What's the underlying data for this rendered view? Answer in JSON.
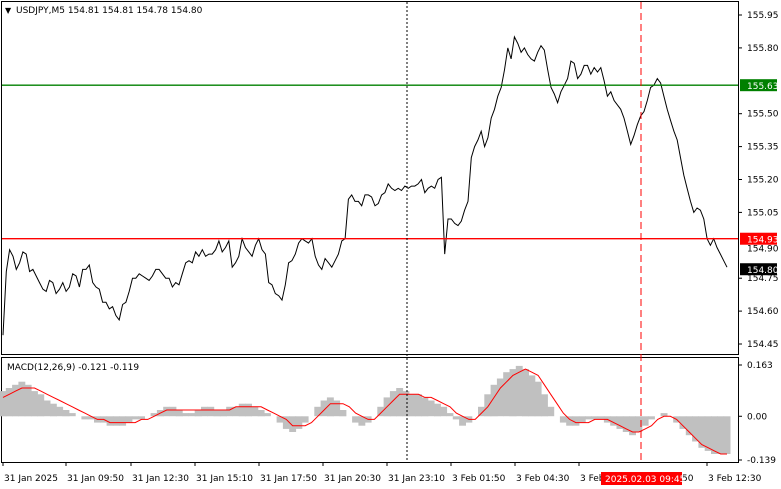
{
  "chart_data": [
    {
      "type": "line",
      "title": "USDJPY,M5  154.81 154.81 154.78 154.80",
      "symbol": "USDJPY,M5",
      "ohlc": [
        "154.81",
        "154.81",
        "154.78",
        "154.80"
      ],
      "y_ticks": [
        "155.95",
        "155.80",
        "155.50",
        "155.35",
        "155.20",
        "155.05",
        "154.75",
        "154.60",
        "154.45"
      ],
      "ylim": [
        154.4,
        156.0
      ],
      "x_ticks": [
        "31 Jan 2025",
        "31 Jan 09:50",
        "31 Jan 12:30",
        "31 Jan 15:10",
        "31 Jan 17:50",
        "31 Jan 20:30",
        "31 Jan 23:10",
        "3 Feb 01:50",
        "3 Feb 04:30",
        "3 Feb",
        "3 Feb 12:30"
      ],
      "x_tick_partial": "50",
      "levels": [
        {
          "price": 155.63,
          "label": "155.63",
          "color": "#008000"
        },
        {
          "price": 154.93,
          "label": "154.93",
          "color": "#ff0000"
        }
      ],
      "current_price": "154.80",
      "current_price_sub": "154.90",
      "cursor_time": "2025.02.03 09:45",
      "day_separator": "31 Jan 23:10",
      "series": [
        {
          "values": [
            154.49,
            154.78,
            154.88,
            154.85,
            154.79,
            154.82,
            154.87,
            154.86,
            154.78,
            154.79,
            154.76,
            154.73,
            154.7,
            154.69,
            154.74,
            154.73,
            154.68,
            154.7,
            154.73,
            154.69,
            154.71,
            154.77,
            154.76,
            154.71,
            154.79,
            154.79,
            154.81,
            154.73,
            154.71,
            154.7,
            154.64,
            154.64,
            154.61,
            154.62,
            154.58,
            154.56,
            154.63,
            154.64,
            154.69,
            154.75,
            154.75,
            154.77,
            154.76,
            154.75,
            154.74,
            154.76,
            154.79,
            154.79,
            154.77,
            154.75,
            154.75,
            154.71,
            154.73,
            154.72,
            154.77,
            154.82,
            154.83,
            154.82,
            154.87,
            154.85,
            154.88,
            154.85,
            154.86,
            154.86,
            154.88,
            154.92,
            154.87,
            154.89,
            154.92,
            154.8,
            154.82,
            154.85,
            154.93,
            154.89,
            154.87,
            154.85,
            154.9,
            154.93,
            154.88,
            154.86,
            154.73,
            154.72,
            154.68,
            154.67,
            154.65,
            154.72,
            154.82,
            154.83,
            154.86,
            154.91,
            154.93,
            154.92,
            154.91,
            154.93,
            154.85,
            154.81,
            154.79,
            154.84,
            154.82,
            154.8,
            154.83,
            154.86,
            154.92,
            154.93,
            155.11,
            155.13,
            155.1,
            155.1,
            155.08,
            155.13,
            155.13,
            155.12,
            155.08,
            155.09,
            155.13,
            155.14,
            155.18,
            155.16,
            155.15,
            155.16,
            155.15,
            155.17,
            155.16,
            155.17,
            155.17,
            155.18,
            155.2,
            155.14,
            155.16,
            155.17,
            155.16,
            155.2,
            155.21,
            154.86,
            155.02,
            155.02,
            155.0,
            154.99,
            155.01,
            155.06,
            155.1,
            155.3,
            155.35,
            155.38,
            155.42,
            155.35,
            155.39,
            155.48,
            155.52,
            155.58,
            155.62,
            155.7,
            155.8,
            155.75,
            155.85,
            155.82,
            155.78,
            155.8,
            155.77,
            155.75,
            155.74,
            155.78,
            155.81,
            155.79,
            155.7,
            155.62,
            155.59,
            155.55,
            155.6,
            155.63,
            155.66,
            155.74,
            155.73,
            155.66,
            155.68,
            155.72,
            155.72,
            155.68,
            155.71,
            155.69,
            155.71,
            155.65,
            155.58,
            155.6,
            155.56,
            155.54,
            155.52,
            155.48,
            155.42,
            155.36,
            155.4,
            155.45,
            155.49,
            155.51,
            155.56,
            155.62,
            155.63,
            155.66,
            155.64,
            155.58,
            155.52,
            155.47,
            155.42,
            155.38,
            155.3,
            155.22,
            155.16,
            155.1,
            155.05,
            155.07,
            155.06,
            155.02,
            154.93,
            154.9,
            154.93,
            154.89,
            154.86,
            154.83,
            154.8
          ]
        }
      ]
    },
    {
      "type": "area",
      "title": "MACD(12,26,9) -0.121 -0.119",
      "y_ticks": [
        "0.163",
        "0.00",
        "-0.139"
      ],
      "ylim": [
        -0.14,
        0.165
      ],
      "series": [
        {
          "name": "MACD",
          "values": [
            0.08,
            0.09,
            0.1,
            0.11,
            0.1,
            0.08,
            0.07,
            0.05,
            0.04,
            0.03,
            0.02,
            0.01,
            0.0,
            -0.01,
            -0.01,
            -0.02,
            -0.02,
            -0.03,
            -0.03,
            -0.03,
            -0.02,
            -0.01,
            -0.01,
            0.0,
            0.01,
            0.02,
            0.03,
            0.03,
            0.02,
            0.01,
            0.01,
            0.02,
            0.03,
            0.03,
            0.02,
            0.02,
            0.03,
            0.03,
            0.04,
            0.04,
            0.03,
            0.02,
            0.01,
            0.0,
            -0.02,
            -0.04,
            -0.05,
            -0.04,
            -0.02,
            0.0,
            0.03,
            0.05,
            0.06,
            0.05,
            0.02,
            0.0,
            -0.02,
            -0.03,
            -0.02,
            0.0,
            0.03,
            0.06,
            0.08,
            0.09,
            0.08,
            0.07,
            0.07,
            0.06,
            0.05,
            0.04,
            0.03,
            0.01,
            -0.01,
            -0.03,
            -0.02,
            0.0,
            0.03,
            0.07,
            0.1,
            0.12,
            0.14,
            0.15,
            0.16,
            0.15,
            0.13,
            0.11,
            0.07,
            0.03,
            0.0,
            -0.02,
            -0.03,
            -0.03,
            -0.02,
            -0.01,
            -0.01,
            -0.01,
            -0.02,
            -0.03,
            -0.04,
            -0.05,
            -0.06,
            -0.05,
            -0.03,
            -0.01,
            0.0,
            0.01,
            0.0,
            -0.02,
            -0.04,
            -0.06,
            -0.08,
            -0.1,
            -0.11,
            -0.12,
            -0.12,
            -0.12
          ]
        },
        {
          "name": "Signal",
          "values": [
            0.06,
            0.07,
            0.08,
            0.09,
            0.09,
            0.09,
            0.08,
            0.07,
            0.06,
            0.05,
            0.04,
            0.03,
            0.02,
            0.01,
            0.0,
            -0.01,
            -0.01,
            -0.02,
            -0.02,
            -0.02,
            -0.02,
            -0.02,
            -0.01,
            -0.01,
            0.0,
            0.01,
            0.02,
            0.02,
            0.02,
            0.02,
            0.02,
            0.02,
            0.02,
            0.02,
            0.02,
            0.02,
            0.02,
            0.03,
            0.03,
            0.03,
            0.03,
            0.03,
            0.02,
            0.01,
            0.0,
            -0.01,
            -0.03,
            -0.03,
            -0.03,
            -0.02,
            0.0,
            0.02,
            0.04,
            0.04,
            0.04,
            0.03,
            0.01,
            0.0,
            -0.01,
            -0.01,
            0.01,
            0.03,
            0.05,
            0.07,
            0.07,
            0.07,
            0.07,
            0.06,
            0.06,
            0.05,
            0.04,
            0.03,
            0.01,
            0.0,
            -0.01,
            -0.01,
            0.01,
            0.03,
            0.06,
            0.09,
            0.11,
            0.13,
            0.14,
            0.15,
            0.14,
            0.13,
            0.1,
            0.07,
            0.04,
            0.01,
            -0.01,
            -0.02,
            -0.02,
            -0.02,
            -0.01,
            -0.01,
            -0.01,
            -0.02,
            -0.03,
            -0.04,
            -0.05,
            -0.05,
            -0.04,
            -0.03,
            -0.01,
            0.0,
            0.0,
            -0.01,
            -0.03,
            -0.05,
            -0.07,
            -0.09,
            -0.1,
            -0.11,
            -0.12,
            -0.12
          ]
        }
      ]
    }
  ],
  "colors": {
    "price_line": "#000000",
    "level_green": "#008000",
    "level_red": "#ff0000",
    "histogram": "#c0c0c0",
    "signal_line": "#ff0000",
    "cursor_line": "#ff0000",
    "separator": "#000000"
  }
}
